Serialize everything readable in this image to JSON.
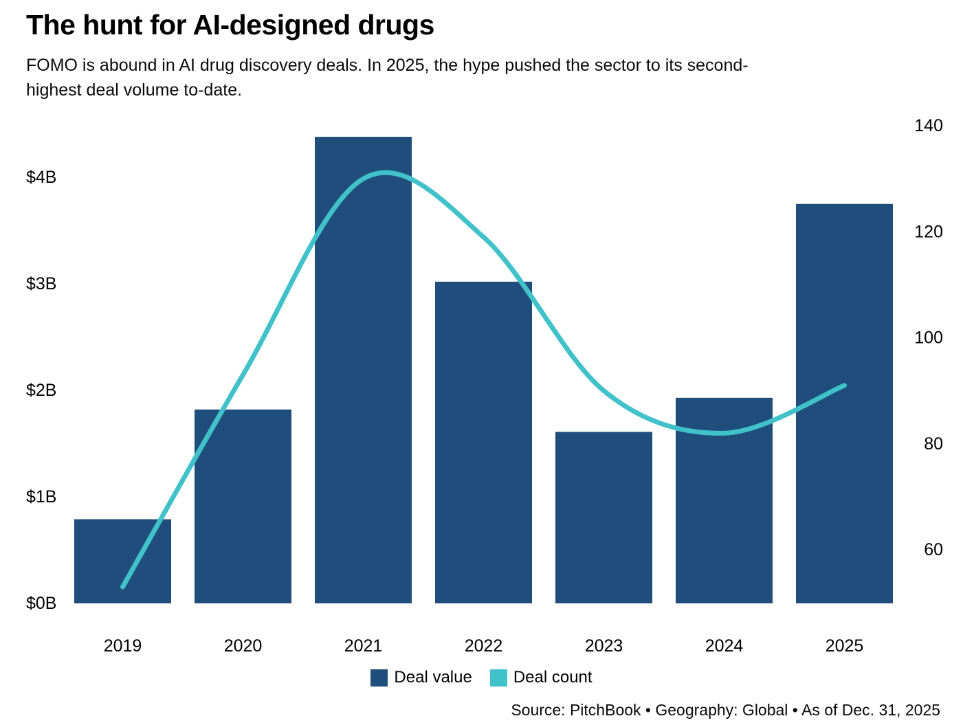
{
  "header": {
    "title": "The hunt for AI-designed drugs",
    "subtitle_lines": [
      "FOMO is abound in AI drug discovery deals. In 2025, the hype pushed the sector to its second-",
      "highest deal volume to-date."
    ]
  },
  "legend": {
    "items": [
      {
        "label": "Deal value",
        "color": "#1F4E7C"
      },
      {
        "label": "Deal count",
        "color": "#41C2CA"
      }
    ]
  },
  "source": "Source: PitchBook • Geography: Global • As of Dec. 31, 2025",
  "colors": {
    "bar": "#1F4E7C",
    "line": "#41C2CA",
    "text": "#000000"
  },
  "chart_data": {
    "type": "combo-bar-line",
    "categories": [
      "2019",
      "2020",
      "2021",
      "2022",
      "2023",
      "2024",
      "2025"
    ],
    "series": [
      {
        "name": "Deal value",
        "type": "bar",
        "axis": "left",
        "unit": "$B",
        "values": [
          0.79,
          1.82,
          4.38,
          3.02,
          1.61,
          1.93,
          3.75
        ]
      },
      {
        "name": "Deal count",
        "type": "line",
        "axis": "right",
        "values": [
          53,
          93,
          130,
          119,
          90,
          82,
          91
        ]
      }
    ],
    "left_axis": {
      "tick_labels": [
        "$0B",
        "$1B",
        "$2B",
        "$3B",
        "$4B"
      ],
      "tick_values": [
        0,
        1,
        2,
        3,
        4
      ],
      "range": [
        0,
        4.58
      ]
    },
    "right_axis": {
      "tick_labels": [
        "60",
        "80",
        "100",
        "120",
        "140"
      ],
      "tick_values": [
        60,
        80,
        100,
        120,
        140
      ],
      "range": [
        50,
        142
      ]
    },
    "grid": false,
    "legend_position": "bottom-center"
  }
}
